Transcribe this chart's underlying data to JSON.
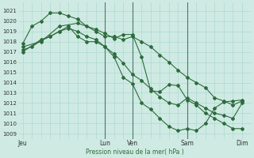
{
  "background_color": "#ceeae3",
  "grid_color": "#a8d5cc",
  "line_color": "#2d6b3c",
  "xlabel": "Pression niveau de la mer( hPa )",
  "ylim": [
    1008.5,
    1021.8
  ],
  "yticks": [
    1009,
    1010,
    1011,
    1012,
    1013,
    1014,
    1015,
    1016,
    1017,
    1018,
    1019,
    1020,
    1021
  ],
  "xtick_labels": [
    "Jeu",
    "Lun",
    "Ven",
    "Sam",
    "Dim"
  ],
  "xtick_positions": [
    0,
    9,
    12,
    18,
    24
  ],
  "vlines": [
    9,
    12,
    18
  ],
  "xlim": [
    -0.5,
    25
  ],
  "line1_x": [
    0,
    1,
    2,
    3,
    4,
    5,
    6,
    7,
    8,
    9,
    10,
    11,
    12,
    13,
    14,
    15,
    16,
    17,
    18,
    19,
    20,
    21,
    22,
    23,
    24
  ],
  "line1_y": [
    1017.8,
    1019.5,
    1020.0,
    1020.8,
    1020.8,
    1020.5,
    1020.2,
    1019.5,
    1019.0,
    1018.5,
    1018.5,
    1018.2,
    1018.5,
    1018.0,
    1017.5,
    1016.7,
    1016.0,
    1015.2,
    1014.5,
    1014.0,
    1013.5,
    1012.5,
    1012.2,
    1011.8,
    1012.2
  ],
  "line2_x": [
    0,
    2,
    4,
    6,
    8,
    9,
    10,
    11,
    12,
    13,
    14,
    15,
    16,
    17,
    18,
    19,
    20,
    21,
    22,
    23,
    24
  ],
  "line2_y": [
    1017.5,
    1018.0,
    1019.5,
    1019.8,
    1019.2,
    1018.8,
    1018.3,
    1018.7,
    1018.7,
    1016.5,
    1013.2,
    1013.1,
    1013.8,
    1013.7,
    1012.3,
    1011.8,
    1011.0,
    1010.5,
    1010.0,
    1009.5,
    1009.5
  ],
  "line3_x": [
    0,
    2,
    3,
    4,
    5,
    6,
    7,
    8,
    9,
    10,
    11,
    12,
    13,
    14,
    15,
    16,
    17,
    18,
    19,
    20,
    21,
    22,
    23,
    24
  ],
  "line3_y": [
    1017.0,
    1018.2,
    1018.5,
    1019.0,
    1019.5,
    1018.5,
    1018.0,
    1018.0,
    1017.5,
    1016.5,
    1014.5,
    1013.9,
    1012.0,
    1011.4,
    1010.5,
    1009.7,
    1009.3,
    1009.5,
    1009.3,
    1010.0,
    1011.5,
    1012.1,
    1012.2,
    1012.3
  ],
  "line4_x": [
    0,
    1,
    2,
    3,
    4,
    5,
    6,
    7,
    8,
    9,
    10,
    11,
    12,
    13,
    14,
    15,
    16,
    17,
    18,
    19,
    20,
    21,
    22,
    23,
    24
  ],
  "line4_y": [
    1017.2,
    1017.5,
    1018.1,
    1018.5,
    1019.0,
    1019.3,
    1019.0,
    1018.5,
    1018.2,
    1017.5,
    1016.8,
    1015.9,
    1014.8,
    1014.2,
    1013.4,
    1012.6,
    1012.0,
    1011.8,
    1012.5,
    1012.0,
    1011.5,
    1011.0,
    1010.8,
    1010.5,
    1012.0
  ]
}
